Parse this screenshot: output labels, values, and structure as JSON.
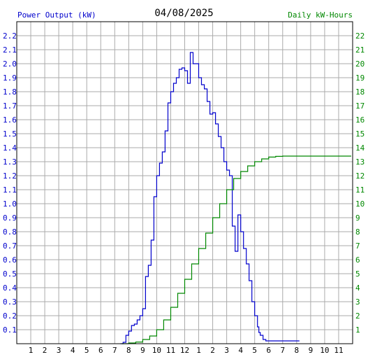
{
  "header": {
    "left_label": "Power Output (kW)",
    "date": "04/08/2025",
    "right_label": "Daily kW-Hours"
  },
  "chart_data": {
    "type": "line",
    "title": "04/08/2025",
    "ylabel": "Power Output (kW)",
    "y2label": "Daily kW-Hours",
    "xlabel": "",
    "xlim": [
      0,
      24
    ],
    "ylim": [
      0,
      2.3
    ],
    "y2lim": [
      0,
      23
    ],
    "x_ticks": [
      "1",
      "2",
      "3",
      "4",
      "5",
      "6",
      "7",
      "8",
      "9",
      "10",
      "11",
      "12",
      "1",
      "2",
      "3",
      "4",
      "5",
      "6",
      "7",
      "8",
      "9",
      "10",
      "11"
    ],
    "y_ticks": [
      "0.1",
      "0.2",
      "0.3",
      "0.4",
      "0.5",
      "0.6",
      "0.7",
      "0.8",
      "0.9",
      "1.0",
      "1.1",
      "1.2",
      "1.3",
      "1.4",
      "1.5",
      "1.6",
      "1.7",
      "1.8",
      "1.9",
      "2.0",
      "2.1",
      "2.2"
    ],
    "y2_ticks": [
      "1",
      "2",
      "3",
      "4",
      "5",
      "6",
      "7",
      "8",
      "9",
      "10",
      "11",
      "12",
      "13",
      "14",
      "15",
      "16",
      "17",
      "18",
      "19",
      "20",
      "21",
      "22"
    ],
    "grid": true,
    "colors": {
      "power": "#0000cc",
      "energy": "#008800",
      "grid": "#aaaaaa",
      "axis": "#000000"
    },
    "series": [
      {
        "axis": "left",
        "x": [
          7.4,
          7.6,
          7.8,
          8.0,
          8.2,
          8.4,
          8.6,
          8.8,
          9.0,
          9.2,
          9.4,
          9.6,
          9.8,
          10.0,
          10.2,
          10.4,
          10.6,
          10.8,
          11.0,
          11.2,
          11.4,
          11.6,
          11.8,
          12.0,
          12.2,
          12.4,
          12.6,
          12.8,
          13.0,
          13.2,
          13.4,
          13.6,
          13.8,
          14.0,
          14.2,
          14.4,
          14.6,
          14.8,
          15.0,
          15.2,
          15.4,
          15.6,
          15.8,
          16.0,
          16.2,
          16.4,
          16.6,
          16.8,
          17.0,
          17.2,
          17.3,
          17.4,
          17.6,
          17.8,
          18.0,
          18.2,
          18.4,
          18.6,
          18.8,
          19.0,
          19.2,
          19.4,
          19.6,
          19.8,
          20.0,
          20.2
        ],
        "y": [
          0.0,
          0.01,
          0.06,
          0.09,
          0.13,
          0.14,
          0.17,
          0.2,
          0.25,
          0.48,
          0.56,
          0.74,
          1.05,
          1.2,
          1.29,
          1.37,
          1.52,
          1.72,
          1.8,
          1.86,
          1.9,
          1.96,
          1.97,
          1.95,
          1.86,
          2.08,
          2.0,
          2.0,
          1.9,
          1.85,
          1.82,
          1.73,
          1.64,
          1.65,
          1.57,
          1.48,
          1.4,
          1.3,
          1.24,
          1.2,
          0.84,
          0.66,
          0.92,
          0.8,
          0.68,
          0.57,
          0.45,
          0.3,
          0.2,
          0.12,
          0.08,
          0.06,
          0.03,
          0.02,
          0.02,
          0.02,
          0.02,
          0.02,
          0.02,
          0.02,
          0.02,
          0.02,
          0.02,
          0.02,
          0.02,
          0.02
        ]
      },
      {
        "axis": "right",
        "x": [
          7.5,
          8.0,
          8.5,
          9.0,
          9.5,
          10.0,
          10.5,
          11.0,
          11.5,
          12.0,
          12.5,
          13.0,
          13.5,
          14.0,
          14.5,
          15.0,
          15.5,
          16.0,
          16.5,
          17.0,
          17.5,
          18.0,
          18.5,
          19.0,
          19.5,
          20.0,
          21.0,
          22.0,
          23.0,
          23.9
        ],
        "y": [
          0.0,
          0.05,
          0.12,
          0.3,
          0.55,
          1.0,
          1.7,
          2.6,
          3.6,
          4.6,
          5.7,
          6.8,
          7.9,
          9.0,
          10.0,
          11.0,
          11.8,
          12.3,
          12.7,
          13.0,
          13.2,
          13.33,
          13.38,
          13.4,
          13.4,
          13.4,
          13.4,
          13.4,
          13.4,
          13.4
        ]
      }
    ]
  }
}
